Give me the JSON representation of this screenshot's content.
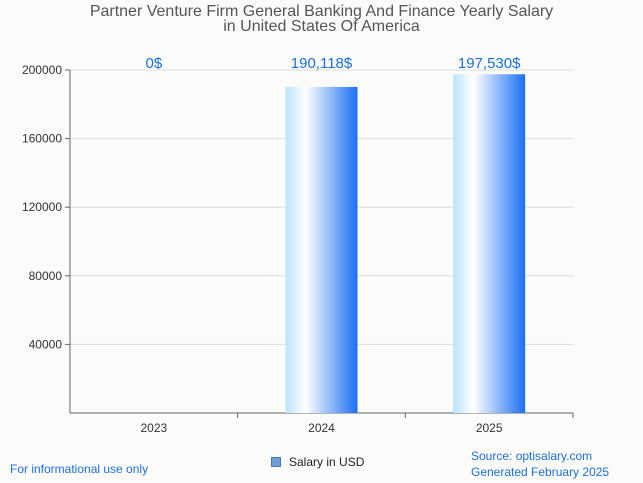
{
  "chart_data": {
    "type": "bar",
    "title_line1": "Partner Venture Firm General Banking And Finance Yearly Salary",
    "title_line2": "in United States Of America",
    "categories": [
      "2023",
      "2024",
      "2025"
    ],
    "values": [
      0,
      190118,
      197530
    ],
    "value_labels": [
      "0$",
      "190,118$",
      "197,530$"
    ],
    "yticks": [
      "40000",
      "80000",
      "120000",
      "160000",
      "200000"
    ],
    "ylim": [
      0,
      200000
    ],
    "legend": "Salary in USD",
    "grid": true
  },
  "colors": {
    "bar_light": "#b9e4fb",
    "bar_mid": "#ffffff",
    "bar_dark": "#1a6ff5",
    "value_label": "#1b6fd9",
    "axis": "#666666",
    "grid": "#dddddd"
  },
  "footer": {
    "disclaimer": "For informational use only",
    "source": "Source: optisalary.com",
    "generated": "Generated February 2025"
  }
}
